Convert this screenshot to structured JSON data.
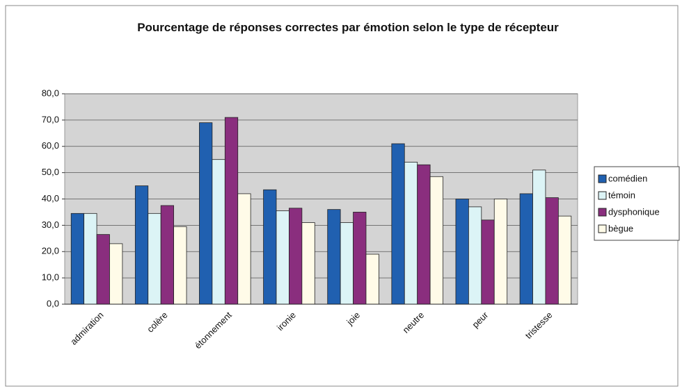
{
  "chart_data": {
    "type": "bar",
    "title": "Pourcentage de réponses correctes par émotion selon le type de récepteur",
    "categories": [
      "admiration",
      "colère",
      "étonnement",
      "ironie",
      "joie",
      "neutre",
      "peur",
      "tristesse"
    ],
    "series": [
      {
        "name": "comédien",
        "color": "#2060b0",
        "values": [
          34.5,
          45,
          69,
          43.5,
          36,
          61,
          40,
          42
        ]
      },
      {
        "name": "témoin",
        "color": "#dcf4f6",
        "values": [
          34.5,
          34.5,
          55,
          35.5,
          31,
          54,
          37,
          51
        ]
      },
      {
        "name": "dysphonique",
        "color": "#8a2e7e",
        "values": [
          26.5,
          37.5,
          71,
          36.5,
          35,
          53,
          32,
          40.5
        ]
      },
      {
        "name": "bègue",
        "color": "#fffbe8",
        "values": [
          23,
          29.5,
          42,
          31,
          19,
          48.5,
          40,
          33.5
        ]
      }
    ],
    "ylim": [
      0,
      80
    ],
    "yticks": [
      {
        "value": 0,
        "label": "0,0"
      },
      {
        "value": 10,
        "label": "10,0"
      },
      {
        "value": 20,
        "label": "20,0"
      },
      {
        "value": 30,
        "label": "30,0"
      },
      {
        "value": 40,
        "label": "40,0"
      },
      {
        "value": 50,
        "label": "50,0"
      },
      {
        "value": 60,
        "label": "60,0"
      },
      {
        "value": 70,
        "label": "70,0"
      },
      {
        "value": 80,
        "label": "80,0"
      }
    ],
    "grid": true,
    "legend": "right"
  }
}
